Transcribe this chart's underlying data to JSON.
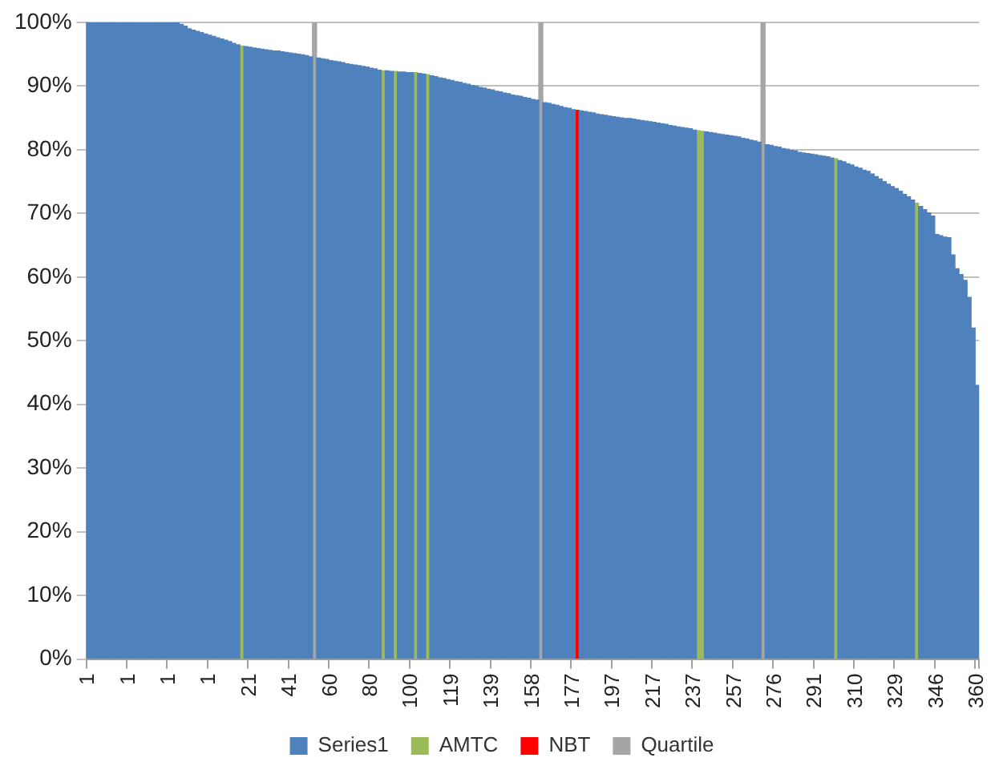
{
  "chart_data": {
    "type": "bar",
    "stacked": true,
    "grid": "y",
    "legend": "bottom",
    "ylim": [
      0,
      100
    ],
    "yticks": [
      {
        "value": 0,
        "label": "0%"
      },
      {
        "value": 10,
        "label": "10%"
      },
      {
        "value": 20,
        "label": "20%"
      },
      {
        "value": 30,
        "label": "30%"
      },
      {
        "value": 40,
        "label": "40%"
      },
      {
        "value": 50,
        "label": "50%"
      },
      {
        "value": 60,
        "label": "60%"
      },
      {
        "value": 70,
        "label": "70%"
      },
      {
        "value": 80,
        "label": "80%"
      },
      {
        "value": 90,
        "label": "90%"
      },
      {
        "value": 100,
        "label": "100%"
      }
    ],
    "categories": [
      "1",
      null,
      null,
      null,
      null,
      null,
      null,
      null,
      null,
      null,
      "1",
      null,
      null,
      null,
      null,
      null,
      null,
      null,
      null,
      null,
      "1",
      null,
      null,
      null,
      null,
      null,
      null,
      null,
      null,
      null,
      "1",
      null,
      null,
      null,
      null,
      null,
      null,
      null,
      null,
      null,
      "21",
      null,
      null,
      null,
      null,
      null,
      null,
      null,
      null,
      null,
      "41",
      null,
      null,
      null,
      null,
      null,
      null,
      null,
      null,
      null,
      "60",
      null,
      null,
      null,
      null,
      null,
      null,
      null,
      null,
      null,
      "80",
      null,
      null,
      null,
      null,
      null,
      null,
      null,
      null,
      null,
      "100",
      null,
      null,
      null,
      null,
      null,
      null,
      null,
      null,
      null,
      "119",
      null,
      null,
      null,
      null,
      null,
      null,
      null,
      null,
      null,
      "139",
      null,
      null,
      null,
      null,
      null,
      null,
      null,
      null,
      null,
      "158",
      null,
      null,
      null,
      null,
      null,
      null,
      null,
      null,
      null,
      "177",
      null,
      null,
      null,
      null,
      null,
      null,
      null,
      null,
      null,
      "197",
      null,
      null,
      null,
      null,
      null,
      null,
      null,
      null,
      null,
      "217",
      null,
      null,
      null,
      null,
      null,
      null,
      null,
      null,
      null,
      "237",
      null,
      null,
      null,
      null,
      null,
      null,
      null,
      null,
      null,
      "257",
      null,
      null,
      null,
      null,
      null,
      null,
      null,
      null,
      null,
      "276",
      null,
      null,
      null,
      null,
      null,
      null,
      null,
      null,
      null,
      "291",
      null,
      null,
      null,
      null,
      null,
      null,
      null,
      null,
      null,
      "310",
      null,
      null,
      null,
      null,
      null,
      null,
      null,
      null,
      null,
      "329",
      null,
      null,
      null,
      null,
      null,
      null,
      null,
      null,
      null,
      "346",
      null,
      null,
      null,
      null,
      null,
      null,
      null,
      null,
      null,
      "360"
    ],
    "series": [
      {
        "name": "Series1",
        "color": "#4f81bd",
        "values": [
          100,
          100,
          100,
          100,
          100,
          100,
          100,
          100,
          100,
          100,
          100,
          100,
          100,
          100,
          100,
          100,
          100,
          100,
          100,
          100,
          100,
          100,
          100,
          99.7,
          99.4,
          99.0,
          98.8,
          98.6,
          98.4,
          98.2,
          98.0,
          97.8,
          97.6,
          97.4,
          97.2,
          97.0,
          96.7,
          96.5,
          null,
          96.2,
          96.1,
          96.0,
          95.9,
          95.8,
          95.7,
          95.6,
          95.5,
          95.5,
          95.4,
          95.3,
          95.2,
          95.1,
          95.0,
          94.9,
          94.8,
          94.6,
          null,
          94.4,
          94.3,
          94.2,
          94.0,
          93.9,
          93.8,
          93.7,
          93.5,
          93.4,
          93.3,
          93.2,
          93.1,
          93.0,
          92.8,
          92.7,
          92.5,
          null,
          92.4,
          92.3,
          null,
          92.2,
          92.2,
          92.1,
          92.1,
          null,
          92.0,
          91.9,
          null,
          91.6,
          91.5,
          91.3,
          91.2,
          91.0,
          90.9,
          90.7,
          90.6,
          90.4,
          90.3,
          90.1,
          90.0,
          89.8,
          89.7,
          89.5,
          89.4,
          89.2,
          89.1,
          88.9,
          88.8,
          88.6,
          88.5,
          88.4,
          88.2,
          88.1,
          87.9,
          87.8,
          null,
          87.4,
          87.3,
          87.1,
          87.0,
          86.8,
          86.6,
          86.5,
          86.3,
          null,
          86.1,
          86.0,
          85.9,
          85.8,
          85.6,
          85.5,
          85.4,
          85.3,
          85.2,
          85.1,
          85.0,
          84.9,
          84.9,
          84.8,
          84.7,
          84.6,
          84.5,
          84.4,
          84.3,
          84.2,
          84.1,
          84.0,
          83.8,
          83.7,
          83.6,
          83.5,
          83.4,
          83.3,
          83.1,
          null,
          null,
          82.8,
          82.7,
          82.6,
          82.5,
          82.4,
          82.3,
          82.2,
          82.1,
          82.0,
          81.8,
          81.7,
          81.5,
          81.4,
          81.2,
          null,
          80.8,
          80.7,
          80.5,
          80.4,
          80.2,
          80.1,
          79.9,
          79.8,
          79.6,
          79.5,
          79.4,
          79.3,
          79.2,
          79.1,
          79.0,
          78.9,
          78.7,
          null,
          78.3,
          78.1,
          77.8,
          77.6,
          77.3,
          77.1,
          76.8,
          76.6,
          76.2,
          75.8,
          75.4,
          75.0,
          74.6,
          74.2,
          73.9,
          73.5,
          73.0,
          72.6,
          72.1,
          null,
          71.1,
          70.6,
          70.1,
          69.6,
          66.7,
          66.5,
          66.3,
          66.2,
          63.5,
          61.3,
          60.4,
          59.5,
          56.8,
          52.0,
          43.0
        ]
      },
      {
        "name": "AMTC",
        "color": "#9bbb59",
        "values": [
          null,
          null,
          null,
          null,
          null,
          null,
          null,
          null,
          null,
          null,
          null,
          null,
          null,
          null,
          null,
          null,
          null,
          null,
          null,
          null,
          null,
          null,
          null,
          null,
          null,
          null,
          null,
          null,
          null,
          null,
          null,
          null,
          null,
          null,
          null,
          null,
          null,
          null,
          96.3,
          null,
          null,
          null,
          null,
          null,
          null,
          null,
          null,
          null,
          null,
          null,
          null,
          null,
          null,
          null,
          null,
          null,
          null,
          null,
          null,
          null,
          null,
          null,
          null,
          null,
          null,
          null,
          null,
          null,
          null,
          null,
          null,
          null,
          null,
          92.4,
          null,
          null,
          92.3,
          null,
          null,
          null,
          null,
          92.1,
          null,
          null,
          91.8,
          null,
          null,
          null,
          null,
          null,
          null,
          null,
          null,
          null,
          null,
          null,
          null,
          null,
          null,
          null,
          null,
          null,
          null,
          null,
          null,
          null,
          null,
          null,
          null,
          null,
          null,
          null,
          null,
          null,
          null,
          null,
          null,
          null,
          null,
          null,
          null,
          null,
          null,
          null,
          null,
          null,
          null,
          null,
          null,
          null,
          null,
          null,
          null,
          null,
          null,
          null,
          null,
          null,
          null,
          null,
          null,
          null,
          null,
          null,
          null,
          null,
          null,
          null,
          null,
          null,
          null,
          83.0,
          82.9,
          null,
          null,
          null,
          null,
          null,
          null,
          null,
          null,
          null,
          null,
          null,
          null,
          null,
          null,
          null,
          null,
          null,
          null,
          null,
          null,
          null,
          null,
          null,
          null,
          null,
          null,
          null,
          null,
          null,
          null,
          null,
          null,
          78.6,
          null,
          null,
          null,
          null,
          null,
          null,
          null,
          null,
          null,
          null,
          null,
          null,
          null,
          null,
          null,
          null,
          null,
          null,
          null,
          71.6,
          null,
          null,
          null,
          null,
          null,
          null,
          null,
          null,
          null,
          null,
          null,
          null,
          null,
          null,
          null
        ]
      },
      {
        "name": "NBT",
        "color": "#ff0000",
        "values": [
          null,
          null,
          null,
          null,
          null,
          null,
          null,
          null,
          null,
          null,
          null,
          null,
          null,
          null,
          null,
          null,
          null,
          null,
          null,
          null,
          null,
          null,
          null,
          null,
          null,
          null,
          null,
          null,
          null,
          null,
          null,
          null,
          null,
          null,
          null,
          null,
          null,
          null,
          null,
          null,
          null,
          null,
          null,
          null,
          null,
          null,
          null,
          null,
          null,
          null,
          null,
          null,
          null,
          null,
          null,
          null,
          null,
          null,
          null,
          null,
          null,
          null,
          null,
          null,
          null,
          null,
          null,
          null,
          null,
          null,
          null,
          null,
          null,
          null,
          null,
          null,
          null,
          null,
          null,
          null,
          null,
          null,
          null,
          null,
          null,
          null,
          null,
          null,
          null,
          null,
          null,
          null,
          null,
          null,
          null,
          null,
          null,
          null,
          null,
          null,
          null,
          null,
          null,
          null,
          null,
          null,
          null,
          null,
          null,
          null,
          null,
          null,
          null,
          null,
          null,
          null,
          null,
          null,
          null,
          null,
          null,
          86.2,
          null,
          null,
          null,
          null,
          null,
          null,
          null,
          null,
          null,
          null,
          null,
          null,
          null,
          null,
          null,
          null,
          null,
          null,
          null,
          null,
          null,
          null,
          null,
          null,
          null,
          null,
          null,
          null,
          null,
          null,
          null,
          null,
          null,
          null,
          null,
          null,
          null,
          null,
          null,
          null,
          null,
          null,
          null,
          null,
          null,
          null,
          null,
          null,
          null,
          null,
          null,
          null,
          null,
          null,
          null,
          null,
          null,
          null,
          null,
          null,
          null,
          null,
          null,
          null,
          null,
          null,
          null,
          null,
          null,
          null,
          null,
          null,
          null,
          null,
          null,
          null,
          null,
          null,
          null,
          null,
          null,
          null,
          null,
          null,
          null,
          null,
          null,
          null,
          null,
          null,
          null,
          null,
          null,
          null,
          null,
          null,
          null,
          null,
          null
        ]
      },
      {
        "name": "Quartile",
        "color": "#a5a5a5",
        "values": [
          null,
          null,
          null,
          null,
          null,
          null,
          null,
          null,
          null,
          null,
          null,
          null,
          null,
          null,
          null,
          null,
          null,
          null,
          null,
          null,
          null,
          null,
          null,
          null,
          null,
          null,
          null,
          null,
          null,
          null,
          null,
          null,
          null,
          null,
          null,
          null,
          null,
          null,
          null,
          null,
          null,
          null,
          null,
          null,
          null,
          null,
          null,
          null,
          null,
          null,
          null,
          null,
          null,
          null,
          null,
          null,
          100,
          null,
          null,
          null,
          null,
          null,
          null,
          null,
          null,
          null,
          null,
          null,
          null,
          null,
          null,
          null,
          null,
          null,
          null,
          null,
          null,
          null,
          null,
          null,
          null,
          null,
          null,
          null,
          null,
          null,
          null,
          null,
          null,
          null,
          null,
          null,
          null,
          null,
          null,
          null,
          null,
          null,
          null,
          null,
          null,
          null,
          null,
          null,
          null,
          null,
          null,
          null,
          null,
          null,
          null,
          null,
          100,
          null,
          null,
          null,
          null,
          null,
          null,
          null,
          null,
          null,
          null,
          null,
          null,
          null,
          null,
          null,
          null,
          null,
          null,
          null,
          null,
          null,
          null,
          null,
          null,
          null,
          null,
          null,
          null,
          null,
          null,
          null,
          null,
          null,
          null,
          null,
          null,
          null,
          null,
          null,
          null,
          null,
          null,
          null,
          null,
          null,
          null,
          null,
          null,
          null,
          null,
          null,
          null,
          null,
          null,
          100,
          null,
          null,
          null,
          null,
          null,
          null,
          null,
          null,
          null,
          null,
          null,
          null,
          null,
          null,
          null,
          null,
          null,
          null,
          null,
          null,
          null,
          null,
          null,
          null,
          null,
          null,
          null,
          null,
          null,
          null,
          null,
          null,
          null,
          null,
          null,
          null,
          null,
          null,
          null,
          null,
          null,
          null,
          null,
          null,
          null,
          null,
          null,
          null,
          null,
          null,
          null,
          null,
          null
        ]
      }
    ]
  }
}
